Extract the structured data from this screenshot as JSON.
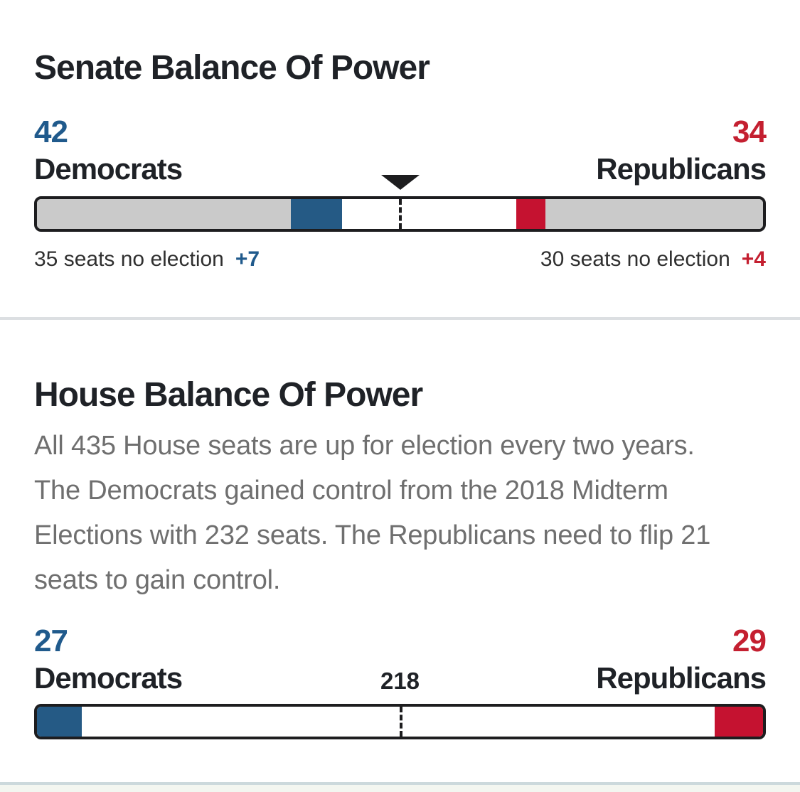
{
  "colors": {
    "dem_blue": "#205a8c",
    "rep_red": "#c41f30",
    "bar_border": "#1d1d1f",
    "divider": "#dcdfe2",
    "bottom_divider": "#ccd9dc",
    "segment_map": {
      "gray": "#cacaca",
      "blue": "#255a85",
      "white": "#ffffff",
      "red": "#c51230"
    }
  },
  "senate": {
    "title": "Senate Balance Of Power",
    "democrats": {
      "count": "42",
      "party": "Democrats",
      "note": "35 seats no election",
      "change": "+7"
    },
    "republicans": {
      "count": "34",
      "party": "Republicans",
      "note": "30 seats no election",
      "change": "+4"
    }
  },
  "house": {
    "title": "House Balance Of Power",
    "description": "All 435 House seats are up for election every two years. The Democrats gained control from the 2018 Midterm Elections with 232 seats. The Republicans need to flip 21 seats to gain control.",
    "democrats": {
      "count": "27",
      "party": "Democrats"
    },
    "republicans": {
      "count": "29",
      "party": "Republicans"
    },
    "majority_label": "218"
  },
  "chart_data": [
    {
      "id": "senate",
      "type": "bar",
      "title": "Senate Balance Of Power",
      "total_seats": 100,
      "majority_marker": 50,
      "democrats_total": 42,
      "republicans_total": 34,
      "democrats_no_election": 35,
      "republicans_no_election": 30,
      "democrats_gained": 7,
      "republicans_gained": 4,
      "segments": [
        {
          "label": "Democrats - seats not up for election",
          "seats": 35,
          "color": "gray"
        },
        {
          "label": "Democrats - seats won",
          "seats": 7,
          "color": "blue"
        },
        {
          "label": "Undecided",
          "seats": 24,
          "color": "white"
        },
        {
          "label": "Republicans - seats won",
          "seats": 4,
          "color": "red"
        },
        {
          "label": "Republicans - seats not up for election",
          "seats": 30,
          "color": "gray"
        }
      ]
    },
    {
      "id": "house",
      "type": "bar",
      "title": "House Balance Of Power",
      "total_seats": 435,
      "majority_marker": 218,
      "democrats_total": 27,
      "republicans_total": 29,
      "segments": [
        {
          "label": "Democrats - seats won",
          "seats": 27,
          "color": "blue"
        },
        {
          "label": "Undecided",
          "seats": 379,
          "color": "white"
        },
        {
          "label": "Republicans - seats won",
          "seats": 29,
          "color": "red"
        }
      ]
    }
  ]
}
